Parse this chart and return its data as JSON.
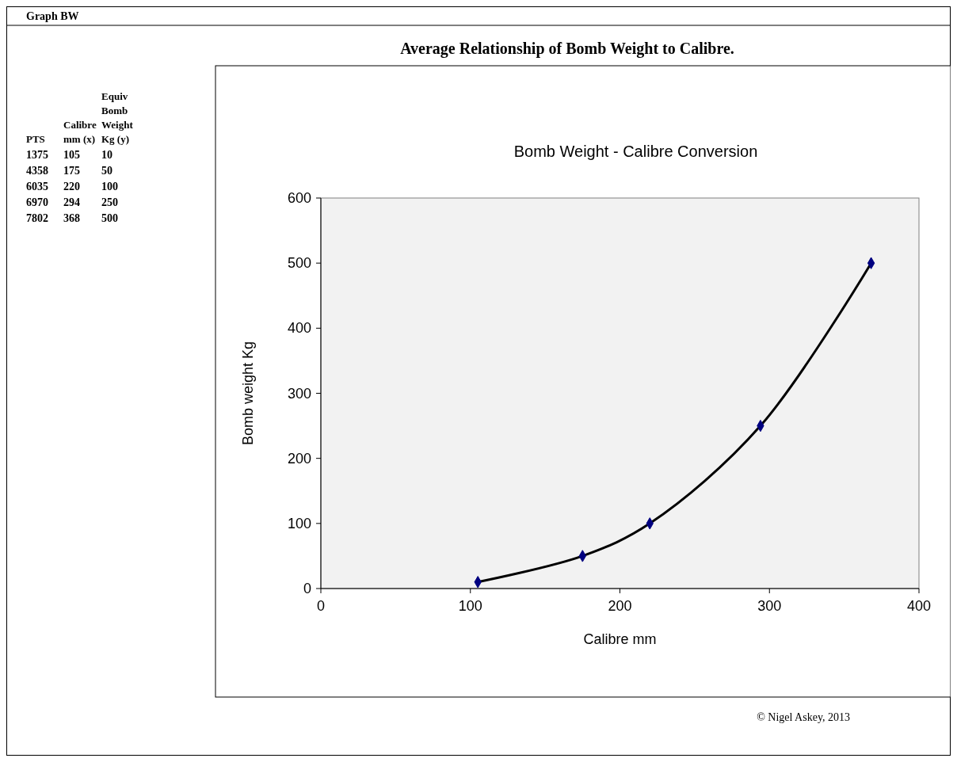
{
  "chart_data": [
    {
      "type": "other",
      "title": "Graph BW",
      "annotations": [
        "PTS",
        "Calibre mm (x)",
        "Equiv Bomb Weight Kg (y)",
        "1375",
        "105",
        "10",
        "4358",
        "175",
        "50",
        "6035",
        "220",
        "100",
        "6970",
        "294",
        "250",
        "7802",
        "368",
        "500"
      ]
    },
    {
      "type": "line",
      "title": "Average Relationship of Bomb Weight to Calibre.",
      "subtitle": "Bomb Weight - Calibre Conversion",
      "xlabel": "Calibre mm",
      "ylabel": "Bomb weight Kg",
      "xlim": [
        0,
        400
      ],
      "xticks": [
        0,
        100,
        200,
        300,
        400
      ],
      "ylim": [
        0,
        600
      ],
      "yticks": [
        0,
        100,
        200,
        300,
        400,
        500,
        600
      ],
      "grid": false,
      "annotations": [
        "© Nigel Askey, 2013"
      ],
      "series": [
        {
          "type": "line",
          "color": "#000000",
          "marker": "none",
          "line_style": "solid",
          "x": [
            105,
            175,
            220,
            294,
            368
          ],
          "values": [
            10,
            50,
            100,
            250,
            500
          ]
        },
        {
          "type": "scatter",
          "color": "#000080",
          "marker": "diamond",
          "x": [
            105,
            175,
            220,
            294,
            368
          ],
          "values": [
            10,
            50,
            100,
            250,
            500
          ]
        }
      ]
    }
  ]
}
